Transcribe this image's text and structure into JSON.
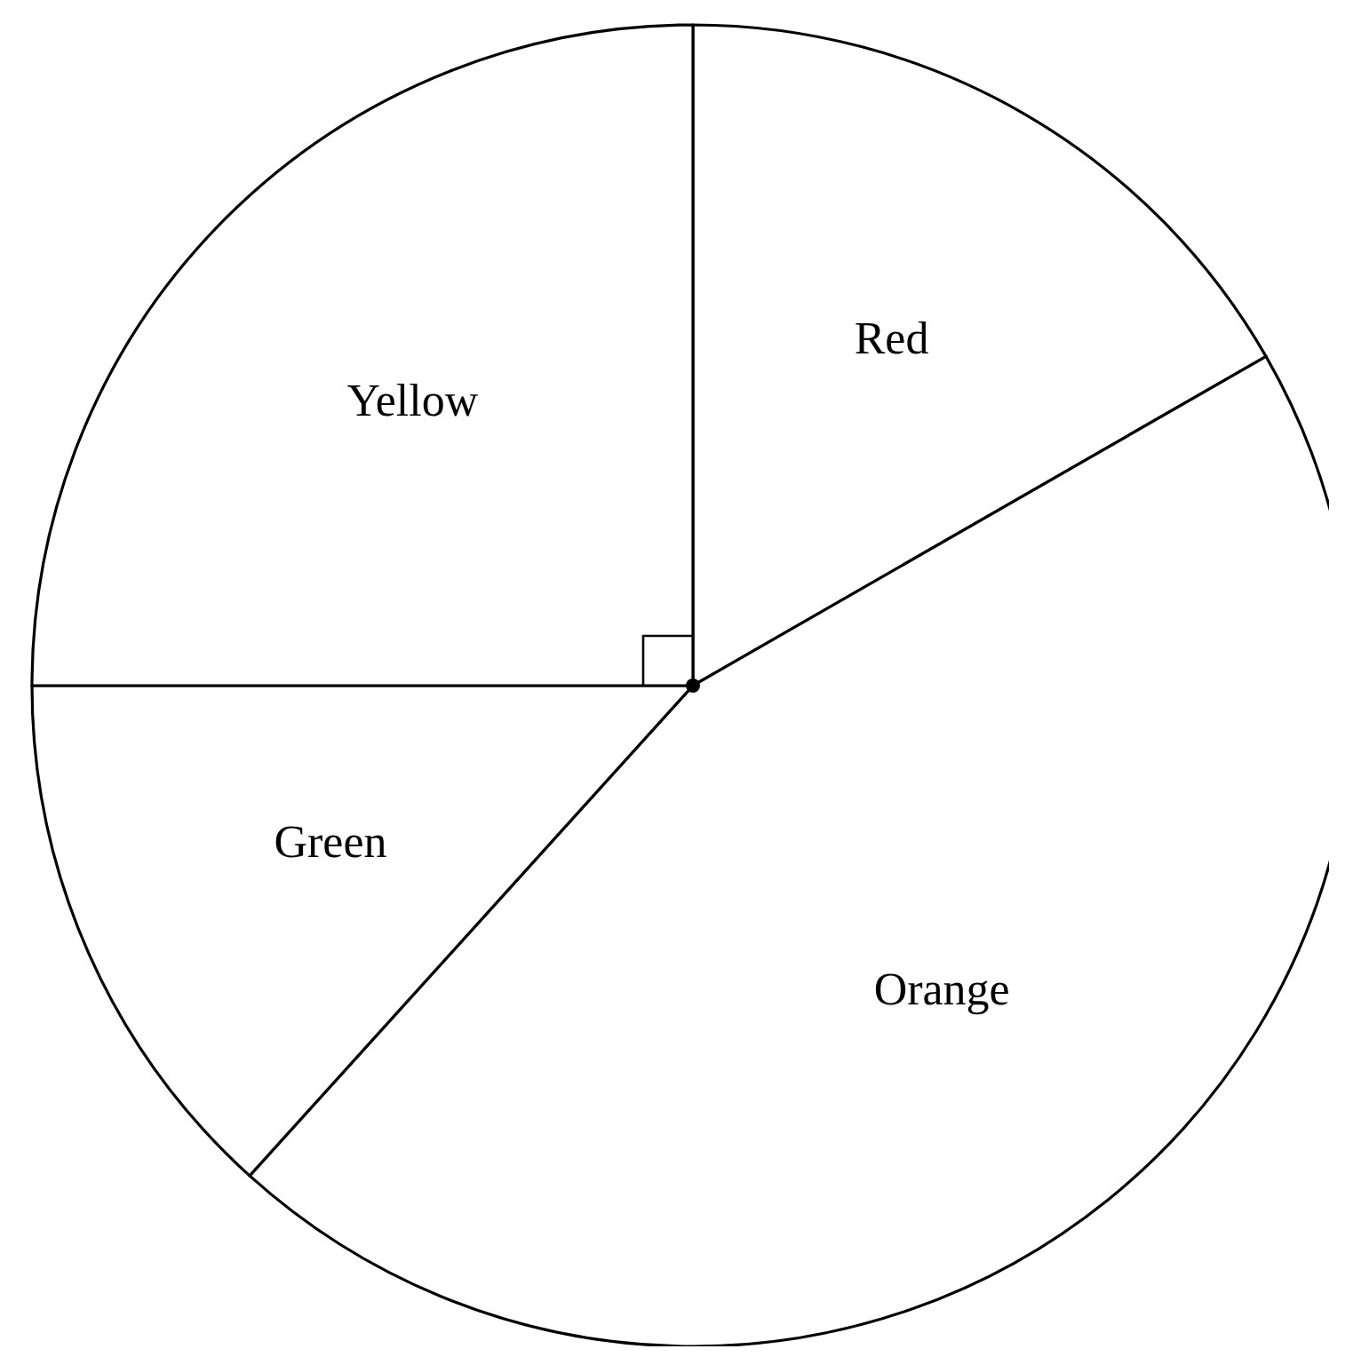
{
  "chart_data": {
    "type": "pie",
    "categories": [
      "Red",
      "Orange",
      "Green",
      "Yellow"
    ],
    "values": [
      16.7,
      45,
      13.3,
      25
    ],
    "colors": [
      "#ffffff",
      "#ffffff",
      "#ffffff",
      "#ffffff"
    ]
  }
}
